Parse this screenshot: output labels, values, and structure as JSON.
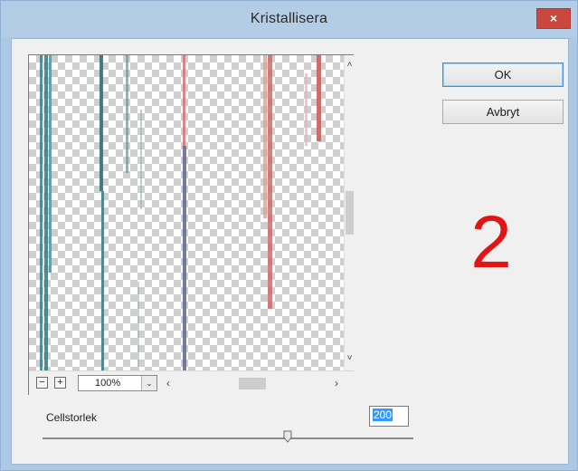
{
  "window": {
    "title": "Kristallisera",
    "close_glyph": "×"
  },
  "preview": {
    "zoom_out_glyph": "−",
    "zoom_in_glyph": "+",
    "zoom_value": "100%",
    "zoom_dropdown_glyph": "⌄",
    "scroll_up_glyph": "˄",
    "scroll_down_glyph": "˅",
    "scroll_left_glyph": "‹",
    "scroll_right_glyph": "›"
  },
  "buttons": {
    "ok_label": "OK",
    "cancel_label": "Avbryt"
  },
  "annotation": {
    "number": "2",
    "color": "#e01616"
  },
  "parameter": {
    "label": "Cellstorlek",
    "value": "200",
    "slider_fraction": 0.66
  },
  "colors": {
    "title_bar": "#b3cde6",
    "close_button": "#c9473d",
    "dialog_bg": "#f0f0f0",
    "stripe_teal": "#3e7f86",
    "stripe_red": "#d07b78",
    "stripe_purple": "#6a6a9c"
  }
}
